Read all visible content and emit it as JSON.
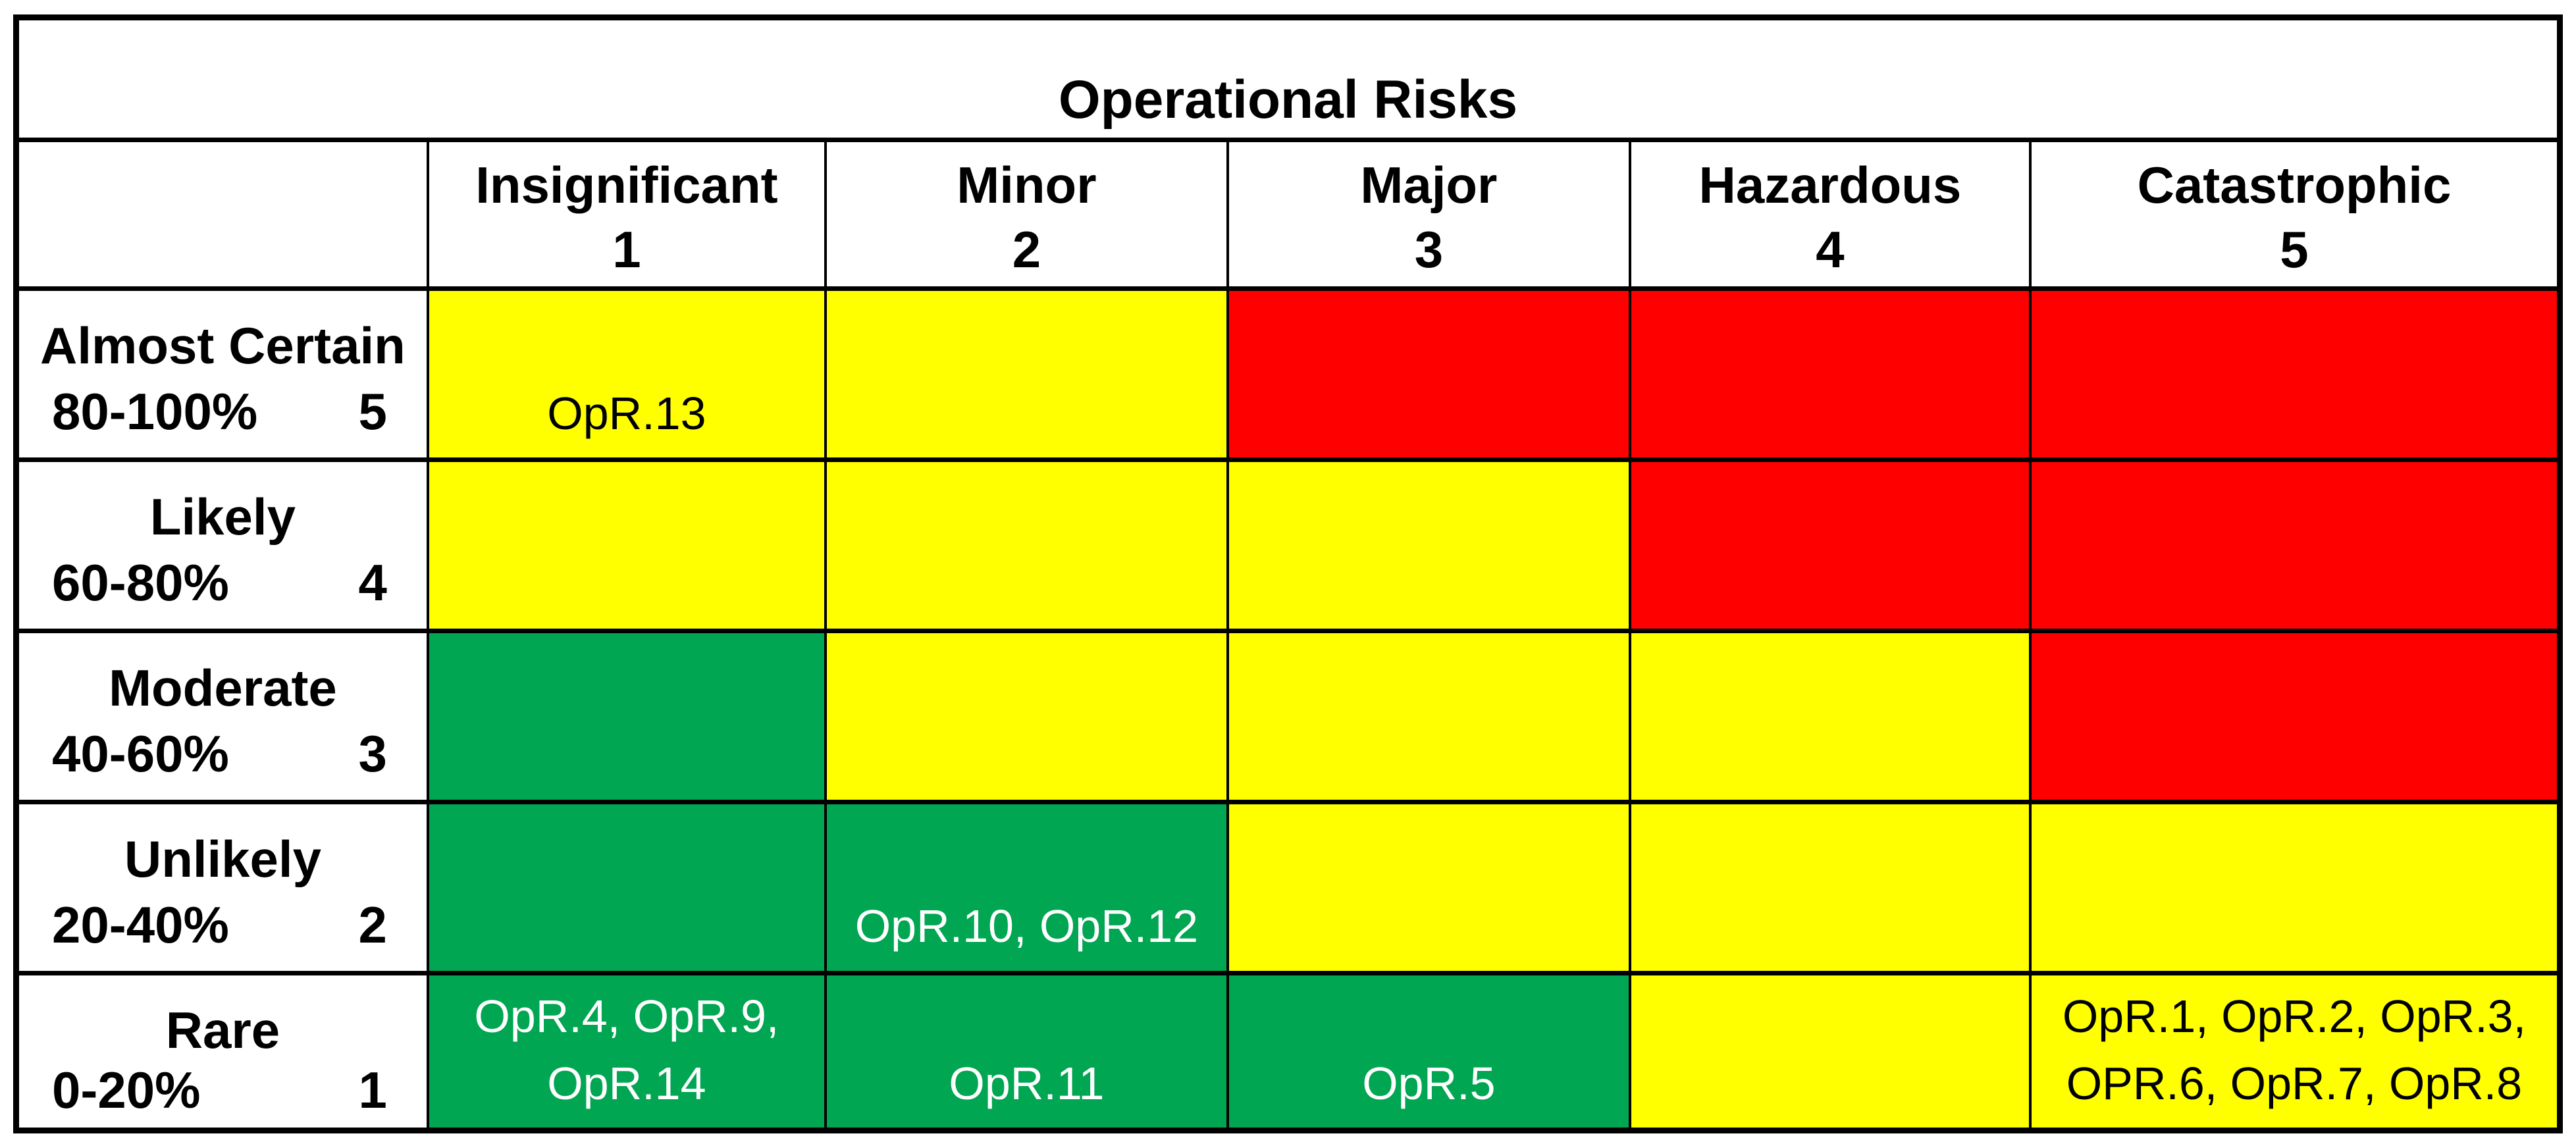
{
  "chart_data": {
    "type": "heatmap",
    "title": "Operational Risks",
    "columns": [
      {
        "label": "Insignificant",
        "score": "1"
      },
      {
        "label": "Minor",
        "score": "2"
      },
      {
        "label": "Major",
        "score": "3"
      },
      {
        "label": "Hazardous",
        "score": "4"
      },
      {
        "label": "Catastrophic",
        "score": "5"
      }
    ],
    "rows": [
      {
        "label": "Almost Certain",
        "probability": "80-100%",
        "score": "5",
        "cells": [
          {
            "level": "yellow",
            "items": "OpR.13"
          },
          {
            "level": "yellow",
            "items": ""
          },
          {
            "level": "red",
            "items": ""
          },
          {
            "level": "red",
            "items": ""
          },
          {
            "level": "red",
            "items": ""
          }
        ]
      },
      {
        "label": "Likely",
        "probability": "60-80%",
        "score": "4",
        "cells": [
          {
            "level": "yellow",
            "items": ""
          },
          {
            "level": "yellow",
            "items": ""
          },
          {
            "level": "yellow",
            "items": ""
          },
          {
            "level": "red",
            "items": ""
          },
          {
            "level": "red",
            "items": ""
          }
        ]
      },
      {
        "label": "Moderate",
        "probability": "40-60%",
        "score": "3",
        "cells": [
          {
            "level": "green",
            "items": ""
          },
          {
            "level": "yellow",
            "items": ""
          },
          {
            "level": "yellow",
            "items": ""
          },
          {
            "level": "yellow",
            "items": ""
          },
          {
            "level": "red",
            "items": ""
          }
        ]
      },
      {
        "label": "Unlikely",
        "probability": "20-40%",
        "score": "2",
        "cells": [
          {
            "level": "green",
            "items": ""
          },
          {
            "level": "green",
            "items": "OpR.10, OpR.12"
          },
          {
            "level": "yellow",
            "items": ""
          },
          {
            "level": "yellow",
            "items": ""
          },
          {
            "level": "yellow",
            "items": ""
          }
        ]
      },
      {
        "label": "Rare",
        "probability": "0-20%",
        "score": "1",
        "cells": [
          {
            "level": "green",
            "items": "OpR.4, OpR.9, OpR.14"
          },
          {
            "level": "green",
            "items": "OpR.11"
          },
          {
            "level": "green",
            "items": "OpR.5"
          },
          {
            "level": "yellow",
            "items": ""
          },
          {
            "level": "yellow",
            "items": "OpR.1, OpR.2, OpR.3, OPR.6, OpR.7, OpR.8"
          }
        ]
      }
    ],
    "risk_level_colors": {
      "green": "#00A651",
      "yellow": "#FFFF00",
      "red": "#FE0000"
    },
    "text_colors": {
      "green": "#FFFFFF",
      "yellow": "#000000",
      "red": "#000000"
    }
  }
}
